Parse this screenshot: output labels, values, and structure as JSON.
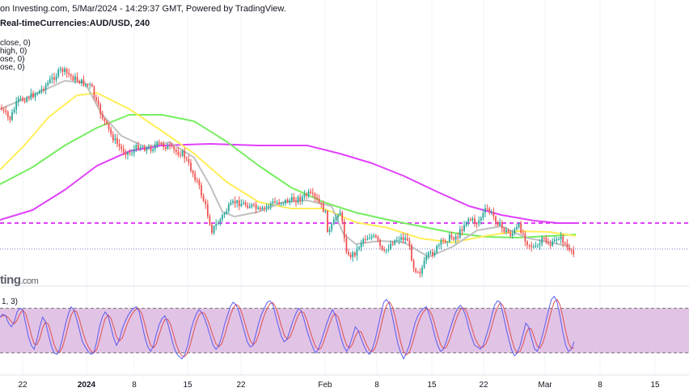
{
  "header": {
    "source_line": "on Investing.com, 5/Mar/2024 - 14:29:37 GMT, Powered by TradingView.",
    "symbol_line": "Real-timeCurrencies:AUD/USD, 240"
  },
  "legend": [
    "close, 0)",
    "high, 0)",
    "ose, 0)",
    "ose, 0)"
  ],
  "brand": {
    "name": "ting",
    "suffix": ".com"
  },
  "stoch_label": "1, 3)",
  "colors": {
    "up_candle": "#26a69a",
    "down_candle": "#ef5350",
    "ma_gray": "#c0c0c0",
    "ma_yellow": "#ffee58",
    "ma_green": "#76ee60",
    "ma_magenta": "#e040fb",
    "stoch_band": "#dcb8e0",
    "stoch_k": "#5b5bf0",
    "stoch_d": "#e05050"
  },
  "chart_data": {
    "type": "candlestick",
    "price_scale_shown": false,
    "x_tick_labels": [
      "22",
      "2024",
      "8",
      "15",
      "22",
      "Feb",
      "8",
      "15",
      "22",
      "Mar",
      "8",
      "15"
    ],
    "close_path": [
      [
        0,
        133
      ],
      [
        12,
        148
      ],
      [
        22,
        125
      ],
      [
        36,
        120
      ],
      [
        50,
        112
      ],
      [
        62,
        100
      ],
      [
        76,
        86
      ],
      [
        90,
        96
      ],
      [
        103,
        103
      ],
      [
        113,
        107
      ],
      [
        118,
        125
      ],
      [
        128,
        148
      ],
      [
        138,
        168
      ],
      [
        150,
        185
      ],
      [
        160,
        190
      ],
      [
        172,
        180
      ],
      [
        184,
        185
      ],
      [
        196,
        178
      ],
      [
        208,
        182
      ],
      [
        218,
        188
      ],
      [
        226,
        190
      ],
      [
        234,
        205
      ],
      [
        244,
        225
      ],
      [
        254,
        255
      ],
      [
        262,
        285
      ],
      [
        270,
        275
      ],
      [
        280,
        260
      ],
      [
        290,
        250
      ],
      [
        300,
        252
      ],
      [
        312,
        255
      ],
      [
        322,
        262
      ],
      [
        334,
        252
      ],
      [
        346,
        250
      ],
      [
        360,
        248
      ],
      [
        372,
        245
      ],
      [
        382,
        240
      ],
      [
        392,
        248
      ],
      [
        402,
        262
      ],
      [
        406,
        290
      ],
      [
        414,
        272
      ],
      [
        420,
        258
      ],
      [
        430,
        318
      ],
      [
        440,
        312
      ],
      [
        448,
        296
      ],
      [
        458,
        292
      ],
      [
        466,
        296
      ],
      [
        474,
        315
      ],
      [
        484,
        300
      ],
      [
        494,
        294
      ],
      [
        504,
        296
      ],
      [
        512,
        332
      ],
      [
        520,
        336
      ],
      [
        528,
        318
      ],
      [
        536,
        312
      ],
      [
        546,
        300
      ],
      [
        556,
        294
      ],
      [
        566,
        292
      ],
      [
        578,
        270
      ],
      [
        590,
        276
      ],
      [
        602,
        258
      ],
      [
        612,
        270
      ],
      [
        622,
        284
      ],
      [
        632,
        290
      ],
      [
        642,
        280
      ],
      [
        652,
        300
      ],
      [
        662,
        308
      ],
      [
        672,
        296
      ],
      [
        682,
        304
      ],
      [
        690,
        292
      ],
      [
        698,
        300
      ],
      [
        704,
        312
      ],
      [
        710,
        315
      ]
    ],
    "ma_gray": [
      [
        0,
        135
      ],
      [
        40,
        118
      ],
      [
        80,
        100
      ],
      [
        105,
        102
      ],
      [
        125,
        140
      ],
      [
        150,
        168
      ],
      [
        180,
        182
      ],
      [
        210,
        176
      ],
      [
        240,
        195
      ],
      [
        260,
        230
      ],
      [
        275,
        262
      ],
      [
        290,
        268
      ],
      [
        320,
        262
      ],
      [
        350,
        250
      ],
      [
        380,
        248
      ],
      [
        410,
        255
      ],
      [
        425,
        290
      ],
      [
        440,
        302
      ],
      [
        470,
        298
      ],
      [
        500,
        300
      ],
      [
        530,
        318
      ],
      [
        560,
        305
      ],
      [
        590,
        285
      ],
      [
        620,
        280
      ],
      [
        650,
        294
      ],
      [
        680,
        300
      ],
      [
        705,
        305
      ]
    ],
    "ma_yellow": [
      [
        0,
        210
      ],
      [
        30,
        180
      ],
      [
        60,
        145
      ],
      [
        95,
        118
      ],
      [
        120,
        115
      ],
      [
        160,
        135
      ],
      [
        200,
        162
      ],
      [
        240,
        190
      ],
      [
        280,
        225
      ],
      [
        320,
        250
      ],
      [
        360,
        258
      ],
      [
        400,
        258
      ],
      [
        440,
        275
      ],
      [
        480,
        282
      ],
      [
        520,
        295
      ],
      [
        560,
        300
      ],
      [
        600,
        292
      ],
      [
        640,
        286
      ],
      [
        680,
        287
      ],
      [
        712,
        292
      ]
    ],
    "ma_green": [
      [
        0,
        228
      ],
      [
        40,
        207
      ],
      [
        80,
        180
      ],
      [
        120,
        158
      ],
      [
        160,
        142
      ],
      [
        200,
        142
      ],
      [
        240,
        150
      ],
      [
        280,
        175
      ],
      [
        320,
        205
      ],
      [
        360,
        232
      ],
      [
        400,
        250
      ],
      [
        440,
        263
      ],
      [
        480,
        272
      ],
      [
        520,
        280
      ],
      [
        560,
        288
      ],
      [
        600,
        293
      ],
      [
        640,
        294
      ],
      [
        680,
        292
      ],
      [
        712,
        290
      ]
    ],
    "ma_magenta": [
      [
        0,
        272
      ],
      [
        40,
        260
      ],
      [
        80,
        235
      ],
      [
        120,
        205
      ],
      [
        160,
        187
      ],
      [
        200,
        180
      ],
      [
        260,
        178
      ],
      [
        320,
        180
      ],
      [
        380,
        180
      ],
      [
        420,
        190
      ],
      [
        460,
        202
      ],
      [
        500,
        218
      ],
      [
        540,
        237
      ],
      [
        580,
        255
      ],
      [
        620,
        266
      ],
      [
        660,
        273
      ],
      [
        690,
        276
      ],
      [
        712,
        276
      ]
    ],
    "ref_lines": [
      {
        "y": 276,
        "style": "dashed",
        "color": "#e040fb"
      },
      {
        "y": 308,
        "style": "dotted",
        "color": "#7b7bd0"
      }
    ],
    "stochastic": {
      "band_upper": 80,
      "band_lower": 20,
      "k_values": [
        68,
        72,
        70,
        60,
        55,
        62,
        75,
        80,
        78,
        60,
        42,
        30,
        25,
        38,
        55,
        68,
        62,
        45,
        30,
        20,
        18,
        25,
        40,
        58,
        72,
        82,
        78,
        65,
        50,
        35,
        28,
        22,
        18,
        20,
        35,
        55,
        68,
        75,
        70,
        55,
        40,
        30,
        38,
        52,
        62,
        70,
        76,
        80,
        82,
        75,
        58,
        40,
        28,
        22,
        30,
        45,
        58,
        66,
        70,
        60,
        45,
        30,
        20,
        15,
        12,
        18,
        30,
        48,
        62,
        72,
        78,
        74,
        66,
        55,
        42,
        30,
        25,
        30,
        42,
        58,
        70,
        82,
        88,
        85,
        76,
        62,
        48,
        35,
        28,
        30,
        45,
        60,
        72,
        80,
        88,
        90,
        85,
        70,
        55,
        42,
        35,
        38,
        50,
        62,
        72,
        80,
        76,
        64,
        50,
        38,
        28,
        20,
        25,
        36,
        48,
        60,
        70,
        78,
        70,
        55,
        40,
        28,
        22,
        30,
        42,
        55,
        50,
        40,
        30,
        22,
        18,
        25,
        38,
        55,
        72,
        88,
        92,
        86,
        70,
        50,
        32,
        20,
        12,
        20,
        30,
        45,
        60,
        70,
        76,
        80,
        82,
        72,
        58,
        42,
        30,
        22,
        25,
        35,
        48,
        60,
        72,
        80,
        84,
        78,
        68,
        52,
        40,
        30,
        28,
        25,
        30,
        42,
        55,
        70,
        84,
        90,
        88,
        72,
        54,
        38,
        24,
        16,
        20,
        30,
        45,
        60,
        55,
        40,
        26,
        22,
        32,
        46,
        62,
        78,
        92,
        96,
        88,
        70,
        48,
        30,
        22,
        25,
        35
      ]
    }
  }
}
